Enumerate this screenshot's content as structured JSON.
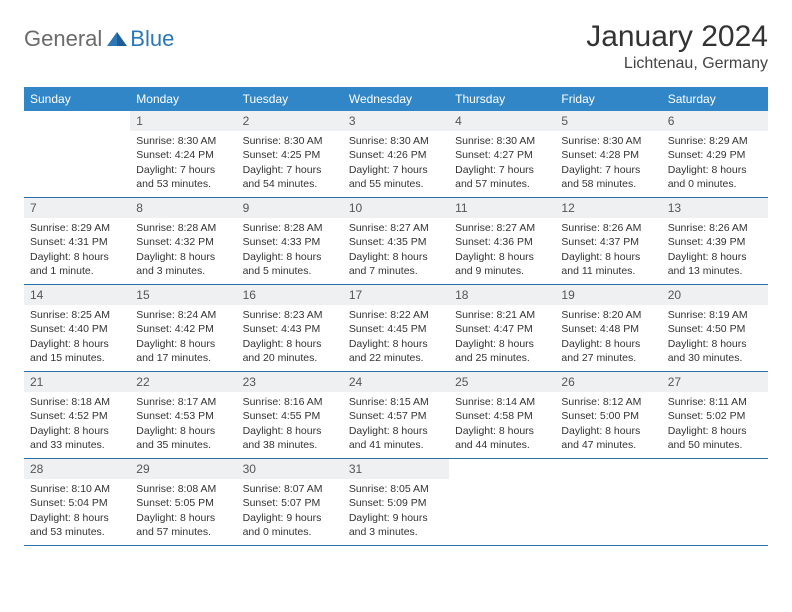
{
  "brand": {
    "part1": "General",
    "part2": "Blue"
  },
  "title": "January 2024",
  "location": "Lichtenau, Germany",
  "colors": {
    "header_bg": "#3186c8",
    "header_text": "#ffffff",
    "daynum_bg": "#eef0f2",
    "daynum_text": "#555555",
    "border": "#2a6fa8",
    "text": "#333333",
    "logo_gray": "#6b6b6b",
    "logo_blue": "#2a77b8",
    "page_bg": "#ffffff"
  },
  "weekdays": [
    "Sunday",
    "Monday",
    "Tuesday",
    "Wednesday",
    "Thursday",
    "Friday",
    "Saturday"
  ],
  "weeks": [
    [
      {
        "day": "",
        "sunrise": "",
        "sunset": "",
        "daylight": ""
      },
      {
        "day": "1",
        "sunrise": "Sunrise: 8:30 AM",
        "sunset": "Sunset: 4:24 PM",
        "daylight": "Daylight: 7 hours and 53 minutes."
      },
      {
        "day": "2",
        "sunrise": "Sunrise: 8:30 AM",
        "sunset": "Sunset: 4:25 PM",
        "daylight": "Daylight: 7 hours and 54 minutes."
      },
      {
        "day": "3",
        "sunrise": "Sunrise: 8:30 AM",
        "sunset": "Sunset: 4:26 PM",
        "daylight": "Daylight: 7 hours and 55 minutes."
      },
      {
        "day": "4",
        "sunrise": "Sunrise: 8:30 AM",
        "sunset": "Sunset: 4:27 PM",
        "daylight": "Daylight: 7 hours and 57 minutes."
      },
      {
        "day": "5",
        "sunrise": "Sunrise: 8:30 AM",
        "sunset": "Sunset: 4:28 PM",
        "daylight": "Daylight: 7 hours and 58 minutes."
      },
      {
        "day": "6",
        "sunrise": "Sunrise: 8:29 AM",
        "sunset": "Sunset: 4:29 PM",
        "daylight": "Daylight: 8 hours and 0 minutes."
      }
    ],
    [
      {
        "day": "7",
        "sunrise": "Sunrise: 8:29 AM",
        "sunset": "Sunset: 4:31 PM",
        "daylight": "Daylight: 8 hours and 1 minute."
      },
      {
        "day": "8",
        "sunrise": "Sunrise: 8:28 AM",
        "sunset": "Sunset: 4:32 PM",
        "daylight": "Daylight: 8 hours and 3 minutes."
      },
      {
        "day": "9",
        "sunrise": "Sunrise: 8:28 AM",
        "sunset": "Sunset: 4:33 PM",
        "daylight": "Daylight: 8 hours and 5 minutes."
      },
      {
        "day": "10",
        "sunrise": "Sunrise: 8:27 AM",
        "sunset": "Sunset: 4:35 PM",
        "daylight": "Daylight: 8 hours and 7 minutes."
      },
      {
        "day": "11",
        "sunrise": "Sunrise: 8:27 AM",
        "sunset": "Sunset: 4:36 PM",
        "daylight": "Daylight: 8 hours and 9 minutes."
      },
      {
        "day": "12",
        "sunrise": "Sunrise: 8:26 AM",
        "sunset": "Sunset: 4:37 PM",
        "daylight": "Daylight: 8 hours and 11 minutes."
      },
      {
        "day": "13",
        "sunrise": "Sunrise: 8:26 AM",
        "sunset": "Sunset: 4:39 PM",
        "daylight": "Daylight: 8 hours and 13 minutes."
      }
    ],
    [
      {
        "day": "14",
        "sunrise": "Sunrise: 8:25 AM",
        "sunset": "Sunset: 4:40 PM",
        "daylight": "Daylight: 8 hours and 15 minutes."
      },
      {
        "day": "15",
        "sunrise": "Sunrise: 8:24 AM",
        "sunset": "Sunset: 4:42 PM",
        "daylight": "Daylight: 8 hours and 17 minutes."
      },
      {
        "day": "16",
        "sunrise": "Sunrise: 8:23 AM",
        "sunset": "Sunset: 4:43 PM",
        "daylight": "Daylight: 8 hours and 20 minutes."
      },
      {
        "day": "17",
        "sunrise": "Sunrise: 8:22 AM",
        "sunset": "Sunset: 4:45 PM",
        "daylight": "Daylight: 8 hours and 22 minutes."
      },
      {
        "day": "18",
        "sunrise": "Sunrise: 8:21 AM",
        "sunset": "Sunset: 4:47 PM",
        "daylight": "Daylight: 8 hours and 25 minutes."
      },
      {
        "day": "19",
        "sunrise": "Sunrise: 8:20 AM",
        "sunset": "Sunset: 4:48 PM",
        "daylight": "Daylight: 8 hours and 27 minutes."
      },
      {
        "day": "20",
        "sunrise": "Sunrise: 8:19 AM",
        "sunset": "Sunset: 4:50 PM",
        "daylight": "Daylight: 8 hours and 30 minutes."
      }
    ],
    [
      {
        "day": "21",
        "sunrise": "Sunrise: 8:18 AM",
        "sunset": "Sunset: 4:52 PM",
        "daylight": "Daylight: 8 hours and 33 minutes."
      },
      {
        "day": "22",
        "sunrise": "Sunrise: 8:17 AM",
        "sunset": "Sunset: 4:53 PM",
        "daylight": "Daylight: 8 hours and 35 minutes."
      },
      {
        "day": "23",
        "sunrise": "Sunrise: 8:16 AM",
        "sunset": "Sunset: 4:55 PM",
        "daylight": "Daylight: 8 hours and 38 minutes."
      },
      {
        "day": "24",
        "sunrise": "Sunrise: 8:15 AM",
        "sunset": "Sunset: 4:57 PM",
        "daylight": "Daylight: 8 hours and 41 minutes."
      },
      {
        "day": "25",
        "sunrise": "Sunrise: 8:14 AM",
        "sunset": "Sunset: 4:58 PM",
        "daylight": "Daylight: 8 hours and 44 minutes."
      },
      {
        "day": "26",
        "sunrise": "Sunrise: 8:12 AM",
        "sunset": "Sunset: 5:00 PM",
        "daylight": "Daylight: 8 hours and 47 minutes."
      },
      {
        "day": "27",
        "sunrise": "Sunrise: 8:11 AM",
        "sunset": "Sunset: 5:02 PM",
        "daylight": "Daylight: 8 hours and 50 minutes."
      }
    ],
    [
      {
        "day": "28",
        "sunrise": "Sunrise: 8:10 AM",
        "sunset": "Sunset: 5:04 PM",
        "daylight": "Daylight: 8 hours and 53 minutes."
      },
      {
        "day": "29",
        "sunrise": "Sunrise: 8:08 AM",
        "sunset": "Sunset: 5:05 PM",
        "daylight": "Daylight: 8 hours and 57 minutes."
      },
      {
        "day": "30",
        "sunrise": "Sunrise: 8:07 AM",
        "sunset": "Sunset: 5:07 PM",
        "daylight": "Daylight: 9 hours and 0 minutes."
      },
      {
        "day": "31",
        "sunrise": "Sunrise: 8:05 AM",
        "sunset": "Sunset: 5:09 PM",
        "daylight": "Daylight: 9 hours and 3 minutes."
      },
      {
        "day": "",
        "sunrise": "",
        "sunset": "",
        "daylight": ""
      },
      {
        "day": "",
        "sunrise": "",
        "sunset": "",
        "daylight": ""
      },
      {
        "day": "",
        "sunrise": "",
        "sunset": "",
        "daylight": ""
      }
    ]
  ]
}
